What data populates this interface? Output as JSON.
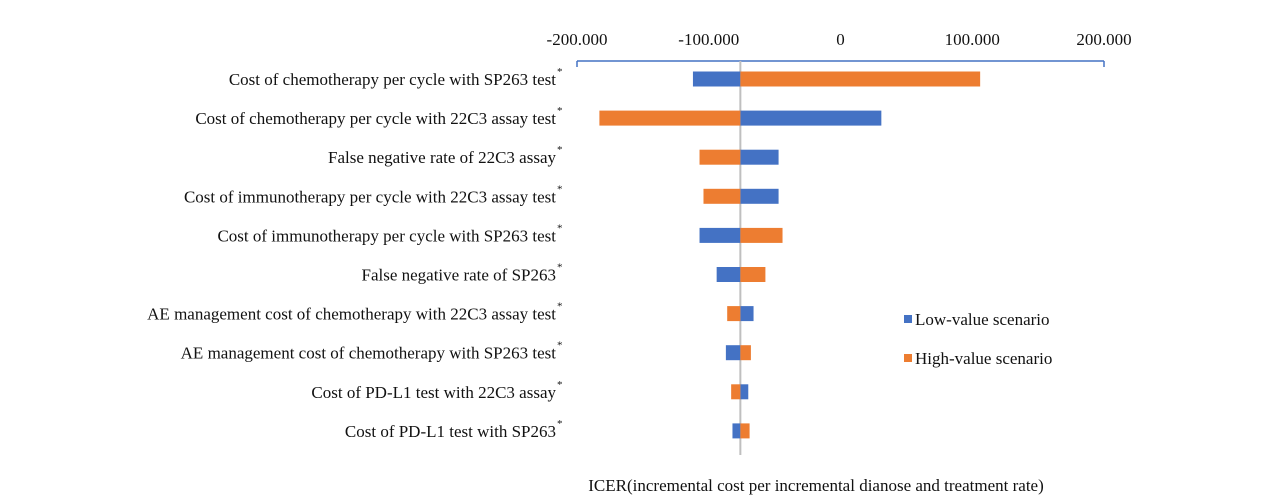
{
  "chart_data": {
    "type": "bar",
    "orientation": "horizontal",
    "subtype": "tornado",
    "xlabel": "ICER(incremental cost per incremental dianose and treatment rate)",
    "xlim": [
      -200000,
      200000
    ],
    "xticks": [
      -200000,
      -100000,
      0,
      100000,
      200000
    ],
    "xtick_labels": [
      "-200.000",
      "-100.000",
      "0",
      "100.000",
      "200.000"
    ],
    "base_value": -76000,
    "categories": [
      "Cost of chemotherapy per cycle with SP263 test",
      "Cost of chemotherapy per cycle with 22C3 assay test",
      "False negative rate of 22C3 assay",
      "Cost of immunotherapy per cycle with 22C3 assay test",
      "Cost of immunotherapy per cycle with SP263 test",
      "False negative rate of SP263",
      "AE management cost of chemotherapy with 22C3 assay test",
      "AE management cost of chemotherapy with SP263 test",
      "Cost of PD-L1 test with 22C3 assay",
      "Cost of PD-L1 test with SP263"
    ],
    "category_marker": "*",
    "series": [
      {
        "name": "Low-value scenario",
        "color": "#4472C4",
        "values": [
          -112000,
          31000,
          -47000,
          -47000,
          -107000,
          -94000,
          -66000,
          -87000,
          -70000,
          -82000
        ]
      },
      {
        "name": "High-value scenario",
        "color": "#ED7D31",
        "values": [
          106000,
          -183000,
          -107000,
          -104000,
          -44000,
          -57000,
          -86000,
          -68000,
          -83000,
          -69000
        ]
      }
    ],
    "legend_position": "right",
    "grid": false
  }
}
